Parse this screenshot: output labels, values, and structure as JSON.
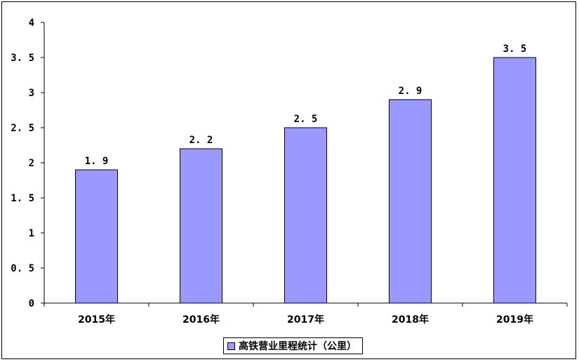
{
  "chart_data": {
    "type": "bar",
    "categories": [
      "2015年",
      "2016年",
      "2017年",
      "2018年",
      "2019年"
    ],
    "series": [
      {
        "name": "高铁营业里程统计（公里）",
        "values": [
          1.9,
          2.2,
          2.5,
          2.9,
          3.5
        ],
        "color": "#9999ff"
      }
    ],
    "data_labels": [
      "1. 9",
      "2. 2",
      "2. 5",
      "2. 9",
      "3. 5"
    ],
    "y_ticks": [
      {
        "value": 0,
        "label": "0"
      },
      {
        "value": 0.5,
        "label": "0. 5"
      },
      {
        "value": 1,
        "label": "1"
      },
      {
        "value": 1.5,
        "label": "1. 5"
      },
      {
        "value": 2,
        "label": "2"
      },
      {
        "value": 2.5,
        "label": "2. 5"
      },
      {
        "value": 3,
        "label": "3"
      },
      {
        "value": 3.5,
        "label": "3. 5"
      },
      {
        "value": 4,
        "label": "4"
      }
    ],
    "ylim": [
      0,
      4
    ],
    "title": "",
    "xlabel": "",
    "ylabel": "",
    "grid": false,
    "legend": "bottom"
  }
}
